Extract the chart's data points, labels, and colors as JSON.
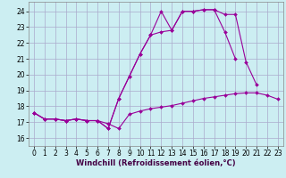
{
  "background_color": "#cceef2",
  "grid_color": "#aaaacc",
  "line_color": "#990099",
  "marker": "D",
  "markersize": 2.0,
  "linewidth": 0.8,
  "xlim": [
    -0.5,
    23.5
  ],
  "ylim": [
    15.5,
    24.6
  ],
  "yticks": [
    16,
    17,
    18,
    19,
    20,
    21,
    22,
    23,
    24
  ],
  "xticks": [
    0,
    1,
    2,
    3,
    4,
    5,
    6,
    7,
    8,
    9,
    10,
    11,
    12,
    13,
    14,
    15,
    16,
    17,
    18,
    19,
    20,
    21,
    22,
    23
  ],
  "xlabel": "Windchill (Refroidissement éolien,°C)",
  "xlabel_fontsize": 6.0,
  "tick_fontsize": 5.5,
  "line1_y": [
    17.6,
    17.2,
    17.2,
    17.1,
    17.2,
    17.1,
    17.1,
    16.9,
    16.6,
    17.5,
    17.7,
    17.85,
    17.95,
    18.05,
    18.2,
    18.35,
    18.5,
    18.6,
    18.7,
    18.8,
    18.85,
    18.85,
    18.7,
    18.45
  ],
  "line2_y": [
    17.6,
    17.2,
    17.2,
    17.1,
    17.2,
    17.1,
    17.1,
    16.6,
    18.5,
    19.9,
    21.3,
    22.5,
    22.7,
    22.8,
    24.0,
    24.0,
    24.1,
    24.1,
    23.8,
    23.8,
    20.8,
    19.35,
    null,
    null
  ],
  "line3_y": [
    17.6,
    17.2,
    17.2,
    17.1,
    17.2,
    17.1,
    17.1,
    16.6,
    18.5,
    19.9,
    21.3,
    22.5,
    24.0,
    22.8,
    24.0,
    24.0,
    24.1,
    24.1,
    22.7,
    21.0,
    null,
    null,
    null,
    null
  ]
}
